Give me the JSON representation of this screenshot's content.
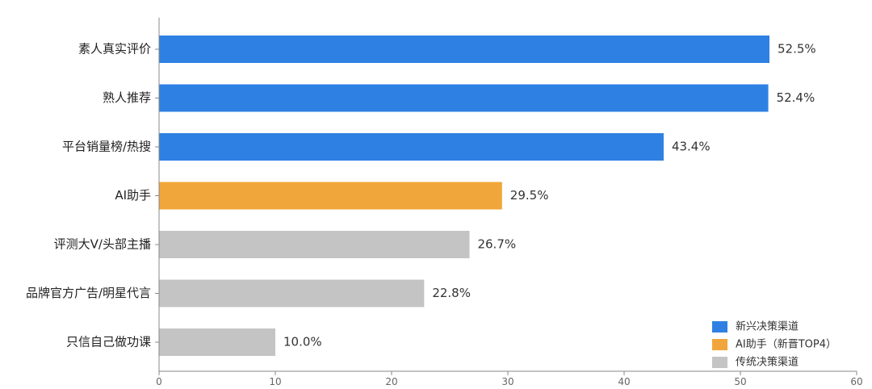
{
  "chart_data": {
    "type": "bar",
    "orientation": "horizontal",
    "categories": [
      "素人真实评价",
      "熟人推荐",
      "平台销量榜/热搜",
      "AI助手",
      "评测大V/头部主播",
      "品牌官方广告/明星代言",
      "只信自己做功课"
    ],
    "values": [
      52.5,
      52.4,
      43.4,
      29.5,
      26.7,
      22.8,
      10.0
    ],
    "value_labels": [
      "52.5%",
      "52.4%",
      "43.4%",
      "29.5%",
      "26.7%",
      "22.8%",
      "10.0%"
    ],
    "groups": [
      "新兴决策渠道",
      "新兴决策渠道",
      "新兴决策渠道",
      "AI助手（新晋TOP4）",
      "传统决策渠道",
      "传统决策渠道",
      "传统决策渠道"
    ],
    "legend": [
      {
        "name": "新兴决策渠道",
        "color": "#2F80E3"
      },
      {
        "name": "AI助手（新晋TOP4）",
        "color": "#F0A63A"
      },
      {
        "name": "传统决策渠道",
        "color": "#C4C4C4"
      }
    ],
    "legend_position": "bottom-right",
    "xlim": [
      0,
      60
    ],
    "xticks": [
      0,
      10,
      20,
      30,
      40,
      50,
      60
    ],
    "grid": false,
    "title": "",
    "xlabel": "",
    "ylabel": ""
  }
}
